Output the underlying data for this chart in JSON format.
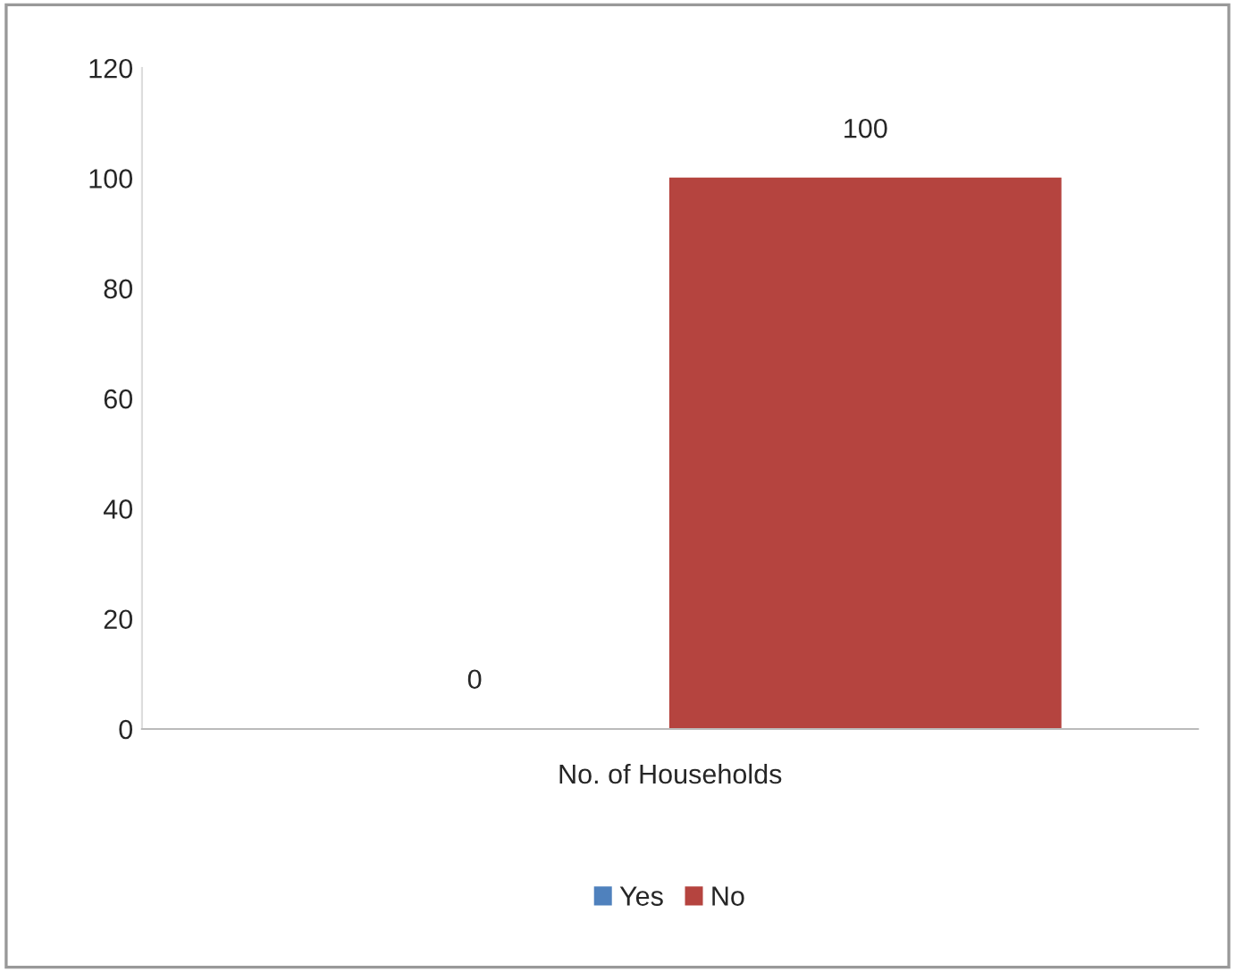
{
  "chart_data": {
    "type": "bar",
    "categories": [
      "No. of Households"
    ],
    "series": [
      {
        "name": "Yes",
        "color": "#4f81bd",
        "values": [
          0
        ]
      },
      {
        "name": "No",
        "color": "#b5443f",
        "values": [
          100
        ]
      }
    ],
    "ylim": [
      0,
      120
    ],
    "yticks": [
      0,
      20,
      40,
      60,
      80,
      100,
      120
    ],
    "data_labels": true,
    "legend": "bottom",
    "grid": false
  }
}
